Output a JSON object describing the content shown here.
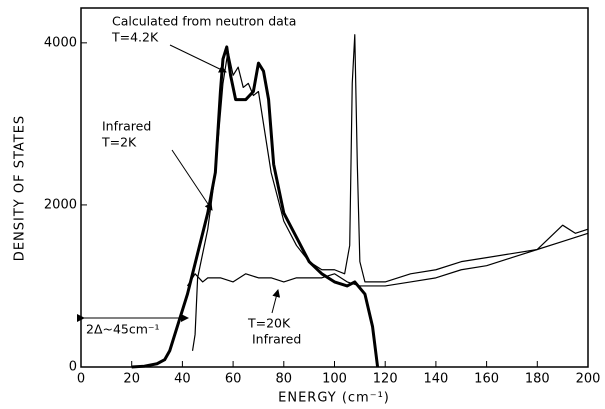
{
  "chart_data": {
    "type": "line",
    "xlabel": "ENERGY (cm⁻¹)",
    "ylabel": "DENSITY OF STATES",
    "xlim": [
      0,
      200
    ],
    "ylim": [
      0,
      4430
    ],
    "xticks": [
      0,
      20,
      40,
      60,
      80,
      100,
      120,
      140,
      160,
      180,
      200
    ],
    "yticks": [
      0,
      2000,
      4000
    ],
    "annotations": [
      "Calculated from neutron data",
      "T=4.2K",
      "Infrared",
      "T=2K",
      "2Δ~45cm⁻¹",
      "T=20K",
      "Infrared"
    ],
    "series": [
      {
        "color": "#000000",
        "width": 3,
        "x": [
          20,
          25,
          30,
          33,
          35,
          38,
          42,
          46,
          50,
          53,
          55,
          56,
          57.5,
          59,
          61,
          65,
          68,
          70,
          72,
          74,
          76,
          80,
          85,
          90,
          95,
          100,
          105,
          108,
          112,
          115,
          117
        ],
        "values": [
          0,
          10,
          40,
          90,
          200,
          500,
          900,
          1400,
          1900,
          2400,
          3400,
          3800,
          3950,
          3600,
          3300,
          3300,
          3400,
          3750,
          3650,
          3300,
          2500,
          1900,
          1600,
          1300,
          1150,
          1050,
          1000,
          1050,
          900,
          500,
          0
        ]
      },
      {
        "color": "#000000",
        "width": 1.2,
        "x": [
          44,
          45,
          46,
          50,
          53,
          56,
          58,
          60,
          62,
          64,
          66,
          68,
          70,
          72,
          75,
          80,
          85,
          90,
          95,
          100,
          104,
          106,
          107,
          108,
          109,
          110,
          112,
          120,
          130,
          140,
          150,
          160,
          170,
          180,
          185,
          190,
          195,
          200
        ],
        "values": [
          200,
          400,
          1100,
          1700,
          2400,
          3500,
          3900,
          3600,
          3700,
          3450,
          3500,
          3350,
          3400,
          3000,
          2400,
          1800,
          1500,
          1300,
          1200,
          1200,
          1150,
          1500,
          3500,
          4100,
          2500,
          1300,
          1050,
          1050,
          1150,
          1200,
          1300,
          1350,
          1400,
          1450,
          1600,
          1750,
          1650,
          1700
        ]
      },
      {
        "color": "#000000",
        "width": 1.2,
        "x": [
          42,
          45,
          48,
          50,
          55,
          60,
          65,
          70,
          75,
          80,
          85,
          90,
          95,
          100,
          105,
          110,
          115,
          120,
          130,
          140,
          150,
          160,
          170,
          180,
          190,
          200
        ],
        "values": [
          1000,
          1150,
          1050,
          1100,
          1100,
          1050,
          1150,
          1100,
          1100,
          1050,
          1100,
          1100,
          1100,
          1150,
          1050,
          1000,
          1000,
          1000,
          1050,
          1100,
          1200,
          1250,
          1350,
          1450,
          1550,
          1650
        ]
      }
    ]
  }
}
